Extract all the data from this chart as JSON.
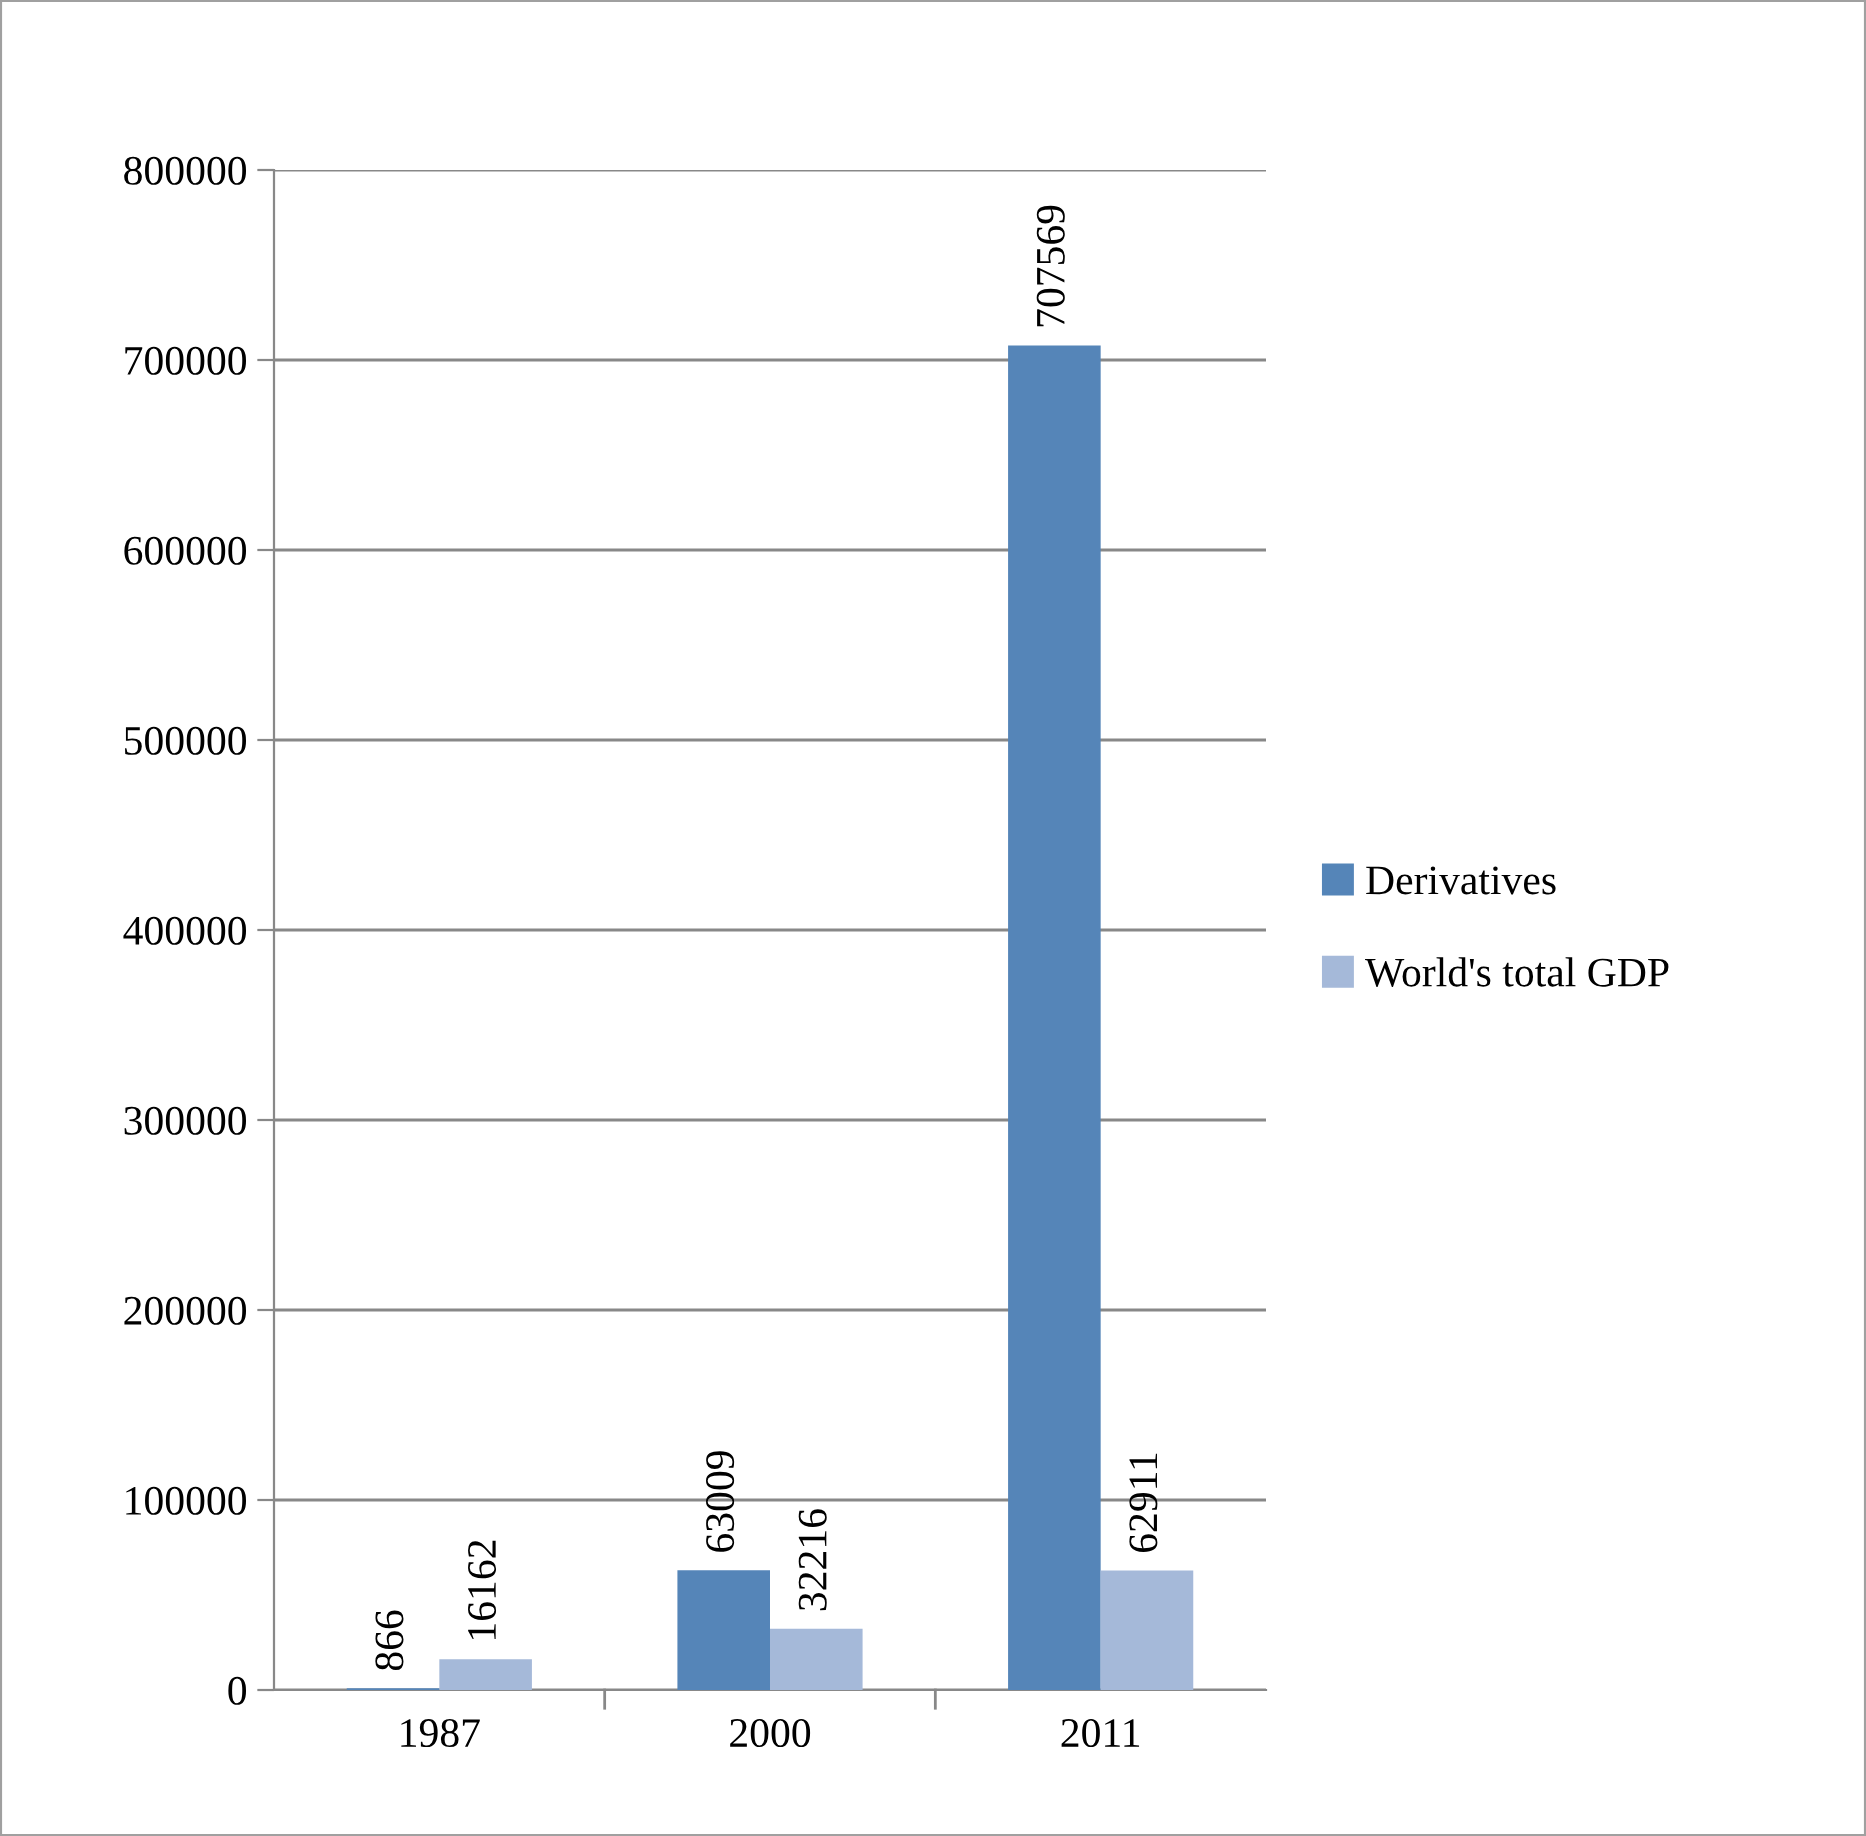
{
  "chart_data": {
    "type": "bar",
    "categories": [
      "1987",
      "2000",
      "2011"
    ],
    "series": [
      {
        "name": "Derivatives",
        "color": "#5585b8",
        "values": [
          866,
          63009,
          707569
        ]
      },
      {
        "name": "World's total GDP",
        "color": "#a5b9d9",
        "values": [
          16162,
          32216,
          62911
        ]
      }
    ],
    "ylim": [
      0,
      800000
    ],
    "yticks": [
      0,
      100000,
      200000,
      300000,
      400000,
      500000,
      600000,
      700000,
      800000
    ],
    "grid": "y",
    "legend": "right",
    "data_labels": true
  }
}
